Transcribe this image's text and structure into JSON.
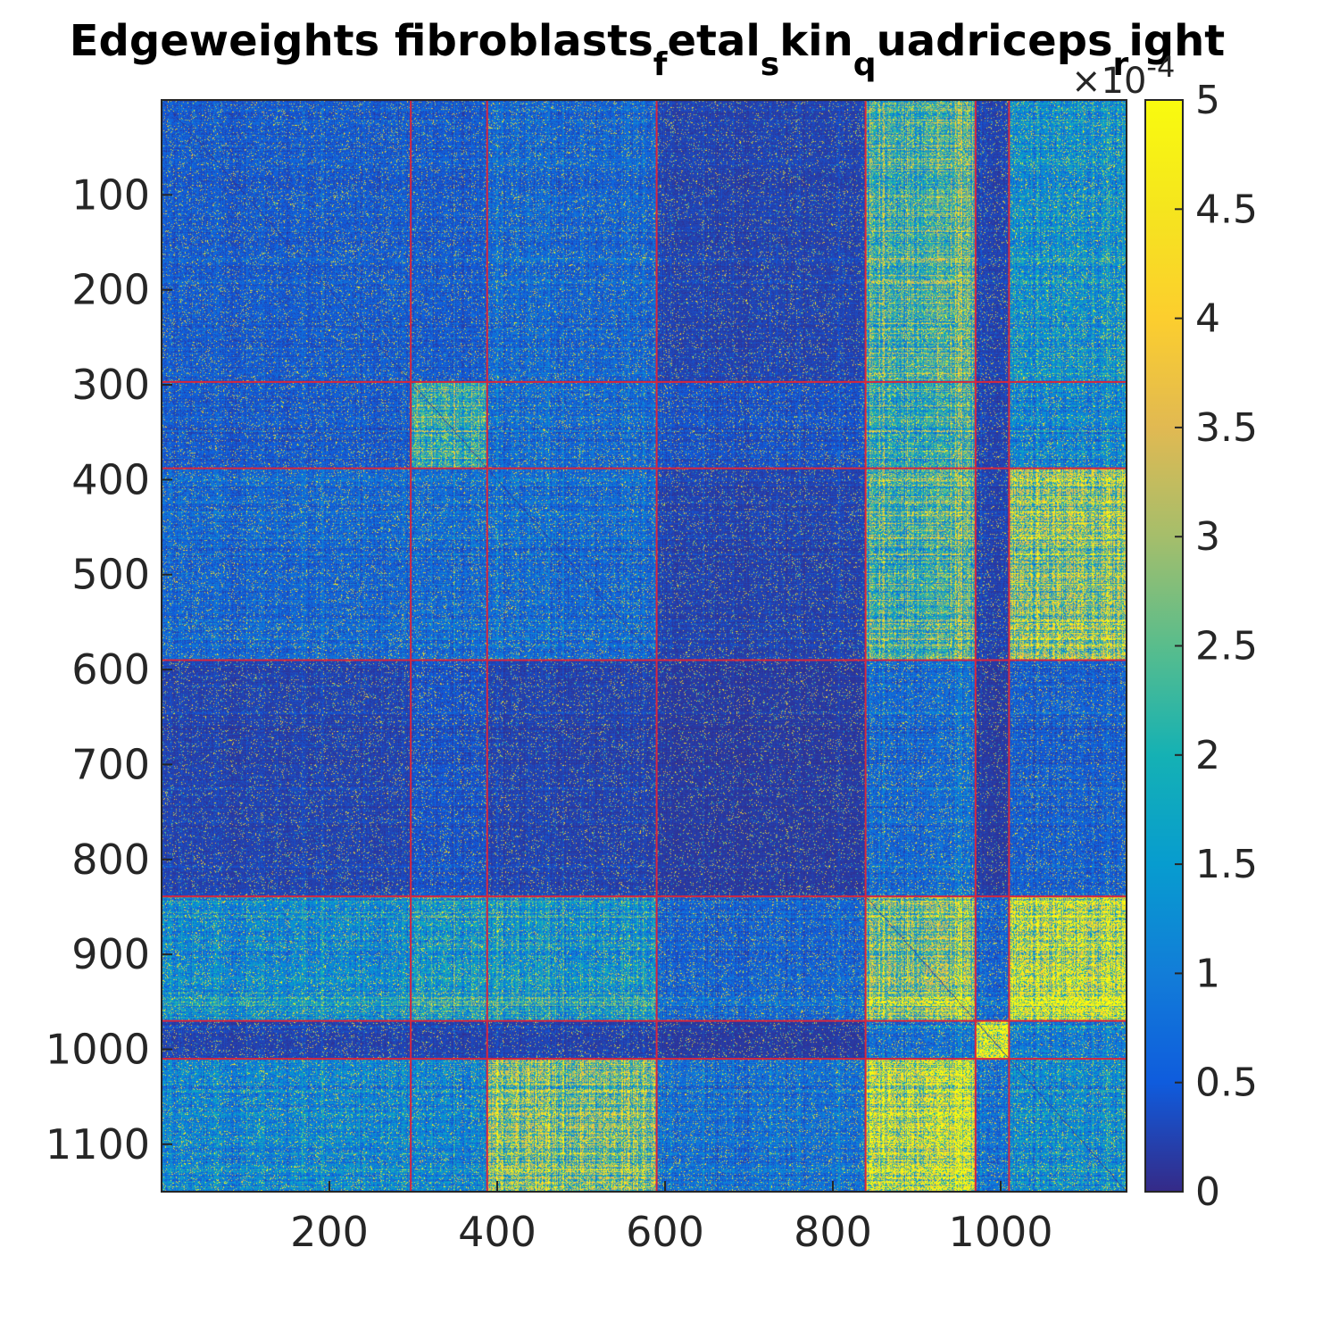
{
  "chart_data": {
    "type": "heatmap",
    "title": {
      "parts": [
        {
          "text": "Edgeweights fibroblasts",
          "sub": false
        },
        {
          "text": "f",
          "sub": true
        },
        {
          "text": "etal",
          "sub": false
        },
        {
          "text": "s",
          "sub": true
        },
        {
          "text": "kin",
          "sub": false
        },
        {
          "text": "q",
          "sub": true
        },
        {
          "text": "uadriceps",
          "sub": false
        },
        {
          "text": "r",
          "sub": true
        },
        {
          "text": "ight",
          "sub": false
        }
      ]
    },
    "n": 1150,
    "x_ticks": [
      200,
      400,
      600,
      800,
      1000
    ],
    "y_ticks": [
      100,
      200,
      300,
      400,
      500,
      600,
      700,
      800,
      900,
      1000,
      1100
    ],
    "colorbar": {
      "min": 0,
      "max": 5,
      "ticks": [
        "0",
        "0.5",
        "1",
        "1.5",
        "2",
        "2.5",
        "3",
        "3.5",
        "4",
        "4.5",
        "5"
      ],
      "exponent_label": "×10",
      "exponent": "-4"
    },
    "colormap": "parula",
    "cluster_boundaries": [
      297,
      388,
      590,
      839,
      970,
      1010
    ],
    "cluster_line_color": "#d7263d",
    "block_mean_levels": [
      [
        0.6,
        0.6,
        0.8,
        0.3,
        2.6,
        0.3,
        1.6
      ],
      [
        0.6,
        2.4,
        0.9,
        0.5,
        2.4,
        0.3,
        1.4
      ],
      [
        0.8,
        0.9,
        0.9,
        0.3,
        2.7,
        0.3,
        3.6
      ],
      [
        0.3,
        0.5,
        0.3,
        0.2,
        0.9,
        0.2,
        0.7
      ],
      [
        1.5,
        1.9,
        1.8,
        0.8,
        3.6,
        0.8,
        4.8
      ],
      [
        0.3,
        0.3,
        0.3,
        0.2,
        1.0,
        5.0,
        1.2
      ],
      [
        1.4,
        1.4,
        3.4,
        1.0,
        4.8,
        1.0,
        1.6
      ]
    ]
  }
}
